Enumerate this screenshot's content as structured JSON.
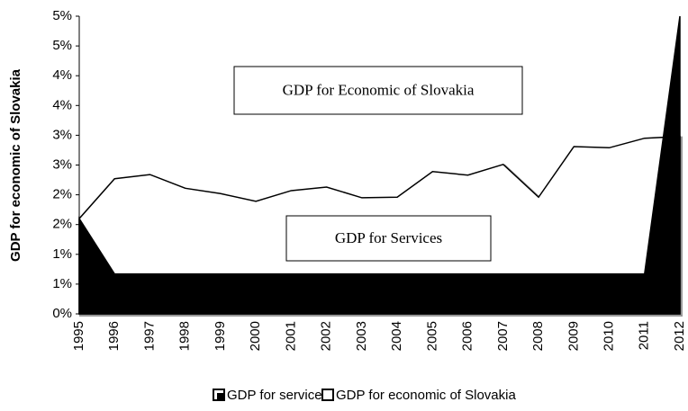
{
  "chart_data": {
    "type": "area",
    "y_label": "GDP  for economic of Slovakia",
    "categories": [
      "1995",
      "1996",
      "1997",
      "1998",
      "1999",
      "2000",
      "2001",
      "2002",
      "2003",
      "2004",
      "2005",
      "2006",
      "2007",
      "2008",
      "2009",
      "2010",
      "2011",
      "2012"
    ],
    "series": [
      {
        "name": "GDP for services",
        "color": "#000000",
        "values": [
          1.6,
          0.67,
          0.67,
          0.67,
          0.67,
          0.67,
          0.67,
          0.67,
          0.67,
          0.67,
          0.67,
          0.67,
          0.67,
          0.67,
          0.67,
          0.67,
          0.67,
          5
        ]
      },
      {
        "name": "GDP for economic of Slovakia",
        "color": "#ffffff",
        "values": [
          1.6,
          2.27,
          2.34,
          2.11,
          2.02,
          1.89,
          2.07,
          2.13,
          1.95,
          1.96,
          2.39,
          2.33,
          2.51,
          1.96,
          2.81,
          2.79,
          2.95,
          2.98
        ]
      }
    ],
    "ylim": [
      0,
      5
    ],
    "yticks": [
      {
        "value": 0,
        "label": "0%"
      },
      {
        "value": 0.5,
        "label": "1%"
      },
      {
        "value": 1,
        "label": "1%"
      },
      {
        "value": 1.5,
        "label": "2%"
      },
      {
        "value": 2,
        "label": "2%"
      },
      {
        "value": 2.5,
        "label": "3%"
      },
      {
        "value": 3,
        "label": "3%"
      },
      {
        "value": 3.5,
        "label": "4%"
      },
      {
        "value": 4,
        "label": "4%"
      },
      {
        "value": 4.5,
        "label": "5%"
      },
      {
        "value": 5,
        "label": "5%"
      }
    ],
    "annotations": [
      "GDP for Economic of Slovakia",
      "GDP for Services"
    ],
    "legend": "bottom"
  }
}
